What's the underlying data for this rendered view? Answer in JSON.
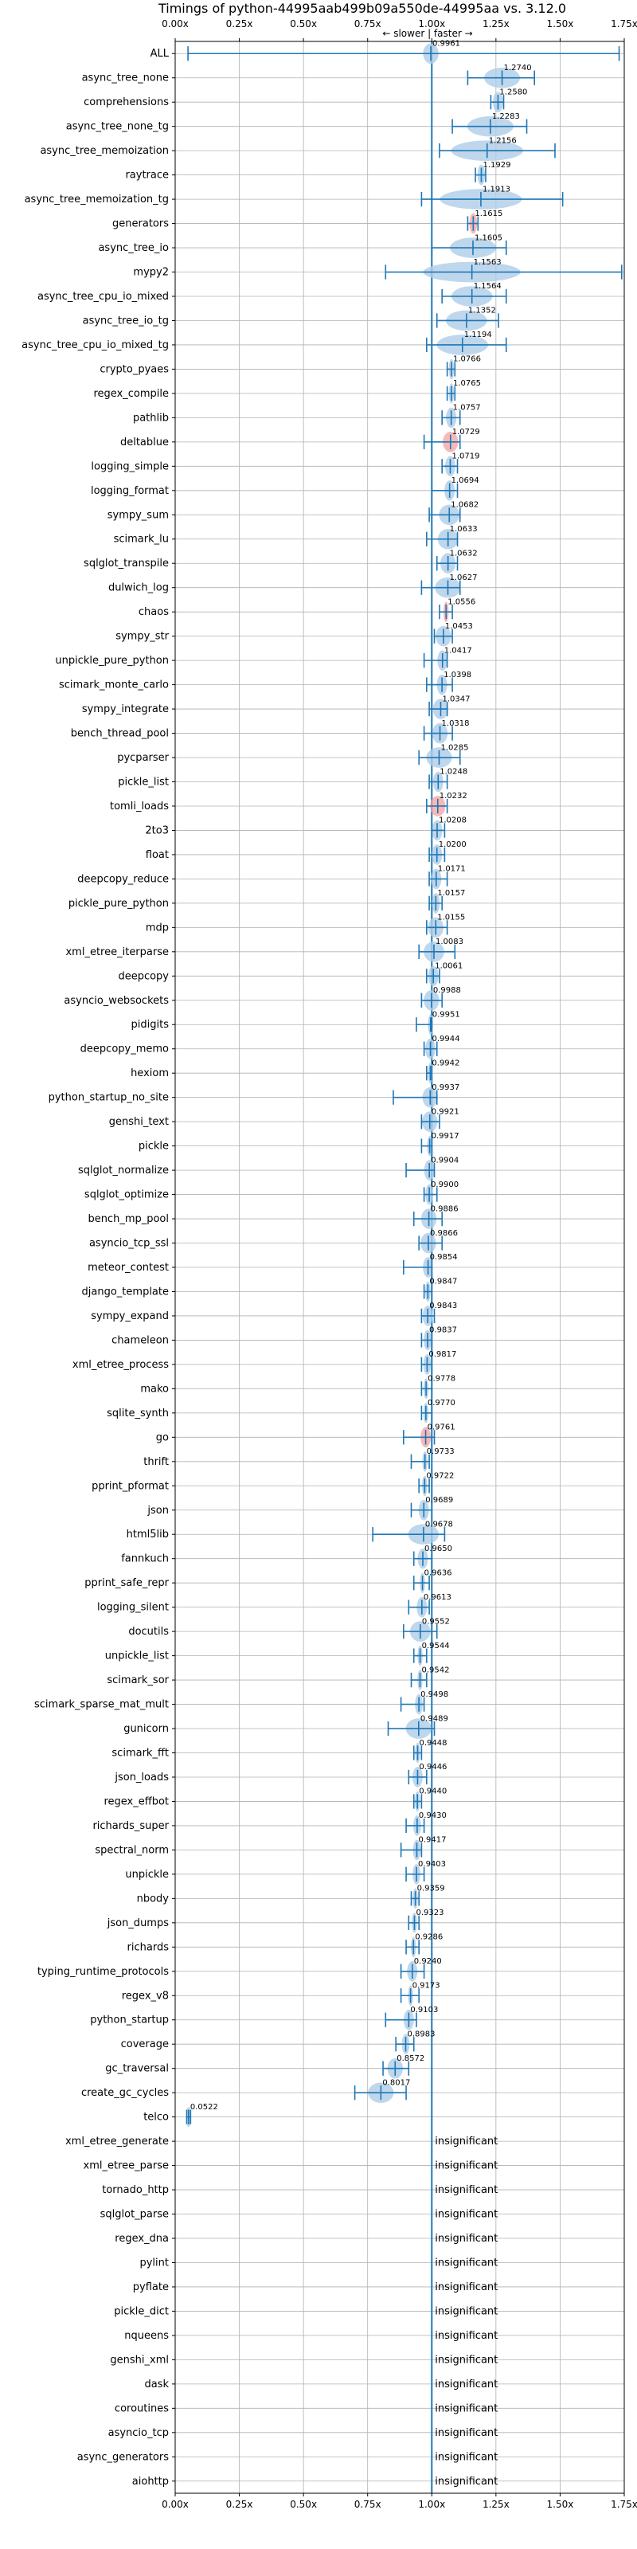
{
  "chart_data": {
    "type": "violin",
    "title": "Timings of python-44995aab499b09a550de-44995aa vs. 3.12.0",
    "subtitle": "← slower | faster →",
    "xlim": [
      0.0,
      1.75
    ],
    "x_ticks": [
      "0.00x",
      "0.25x",
      "0.50x",
      "0.75x",
      "1.00x",
      "1.25x",
      "1.50x",
      "1.75x"
    ],
    "x_tick_values": [
      0.0,
      0.25,
      0.5,
      0.75,
      1.0,
      1.25,
      1.5,
      1.75
    ],
    "reference_line": 1.0,
    "grid": true,
    "colors": {
      "violin": "#aecde8",
      "line": "#1f77b4",
      "highlight": "#f4a0a0",
      "grid": "#b0b0b0"
    },
    "insignificant_label": "insignificant",
    "benchmarks": [
      {
        "name": "ALL",
        "value": 0.9961,
        "label": "0.9961",
        "lo": 0.05,
        "hi": 1.73,
        "spread": 0.03
      },
      {
        "name": "async_tree_none",
        "value": 1.274,
        "label": "1.2740",
        "lo": 1.14,
        "hi": 1.4,
        "spread": 0.07
      },
      {
        "name": "comprehensions",
        "value": 1.258,
        "label": "1.2580",
        "lo": 1.23,
        "hi": 1.28,
        "spread": 0.02
      },
      {
        "name": "async_tree_none_tg",
        "value": 1.2283,
        "label": "1.2283",
        "lo": 1.08,
        "hi": 1.37,
        "spread": 0.09
      },
      {
        "name": "async_tree_memoization",
        "value": 1.2156,
        "label": "1.2156",
        "lo": 1.03,
        "hi": 1.48,
        "spread": 0.14
      },
      {
        "name": "raytrace",
        "value": 1.1929,
        "label": "1.1929",
        "lo": 1.17,
        "hi": 1.21,
        "spread": 0.015
      },
      {
        "name": "async_tree_memoization_tg",
        "value": 1.1913,
        "label": "1.1913",
        "lo": 0.96,
        "hi": 1.51,
        "spread": 0.16
      },
      {
        "name": "generators",
        "value": 1.1615,
        "label": "1.1615",
        "lo": 1.14,
        "hi": 1.18,
        "spread": 0.015,
        "highlight": true
      },
      {
        "name": "async_tree_io",
        "value": 1.1605,
        "label": "1.1605",
        "lo": 1.0,
        "hi": 1.29,
        "spread": 0.09
      },
      {
        "name": "mypy2",
        "value": 1.1563,
        "label": "1.1563",
        "lo": 0.82,
        "hi": 1.74,
        "spread": 0.19
      },
      {
        "name": "async_tree_cpu_io_mixed",
        "value": 1.1564,
        "label": "1.1564",
        "lo": 1.04,
        "hi": 1.29,
        "spread": 0.08
      },
      {
        "name": "async_tree_io_tg",
        "value": 1.1352,
        "label": "1.1352",
        "lo": 1.02,
        "hi": 1.26,
        "spread": 0.08
      },
      {
        "name": "async_tree_cpu_io_mixed_tg",
        "value": 1.1194,
        "label": "1.1194",
        "lo": 0.98,
        "hi": 1.29,
        "spread": 0.1
      },
      {
        "name": "crypto_pyaes",
        "value": 1.0766,
        "label": "1.0766",
        "lo": 1.06,
        "hi": 1.09,
        "spread": 0.01
      },
      {
        "name": "regex_compile",
        "value": 1.0765,
        "label": "1.0765",
        "lo": 1.06,
        "hi": 1.09,
        "spread": 0.01
      },
      {
        "name": "pathlib",
        "value": 1.0757,
        "label": "1.0757",
        "lo": 1.04,
        "hi": 1.11,
        "spread": 0.02
      },
      {
        "name": "deltablue",
        "value": 1.0729,
        "label": "1.0729",
        "lo": 0.97,
        "hi": 1.11,
        "spread": 0.03,
        "highlight": true
      },
      {
        "name": "logging_simple",
        "value": 1.0719,
        "label": "1.0719",
        "lo": 1.04,
        "hi": 1.1,
        "spread": 0.02
      },
      {
        "name": "logging_format",
        "value": 1.0694,
        "label": "1.0694",
        "lo": 1.0,
        "hi": 1.1,
        "spread": 0.02
      },
      {
        "name": "sympy_sum",
        "value": 1.0682,
        "label": "1.0682",
        "lo": 0.99,
        "hi": 1.11,
        "spread": 0.04
      },
      {
        "name": "scimark_lu",
        "value": 1.0633,
        "label": "1.0633",
        "lo": 0.98,
        "hi": 1.1,
        "spread": 0.04
      },
      {
        "name": "sqlglot_transpile",
        "value": 1.0632,
        "label": "1.0632",
        "lo": 1.02,
        "hi": 1.1,
        "spread": 0.03
      },
      {
        "name": "dulwich_log",
        "value": 1.0627,
        "label": "1.0627",
        "lo": 0.96,
        "hi": 1.11,
        "spread": 0.05
      },
      {
        "name": "chaos",
        "value": 1.0556,
        "label": "1.0556",
        "lo": 1.03,
        "hi": 1.08,
        "spread": 0.01,
        "highlight": true
      },
      {
        "name": "sympy_str",
        "value": 1.0453,
        "label": "1.0453",
        "lo": 1.01,
        "hi": 1.08,
        "spread": 0.03
      },
      {
        "name": "unpickle_pure_python",
        "value": 1.0417,
        "label": "1.0417",
        "lo": 0.97,
        "hi": 1.06,
        "spread": 0.02
      },
      {
        "name": "scimark_monte_carlo",
        "value": 1.0398,
        "label": "1.0398",
        "lo": 0.98,
        "hi": 1.08,
        "spread": 0.02
      },
      {
        "name": "sympy_integrate",
        "value": 1.0347,
        "label": "1.0347",
        "lo": 0.99,
        "hi": 1.06,
        "spread": 0.03
      },
      {
        "name": "bench_thread_pool",
        "value": 1.0318,
        "label": "1.0318",
        "lo": 0.97,
        "hi": 1.08,
        "spread": 0.03
      },
      {
        "name": "pycparser",
        "value": 1.0285,
        "label": "1.0285",
        "lo": 0.95,
        "hi": 1.11,
        "spread": 0.05
      },
      {
        "name": "pickle_list",
        "value": 1.0248,
        "label": "1.0248",
        "lo": 0.99,
        "hi": 1.06,
        "spread": 0.02
      },
      {
        "name": "tomli_loads",
        "value": 1.0232,
        "label": "1.0232",
        "lo": 0.98,
        "hi": 1.06,
        "spread": 0.03,
        "highlight": true
      },
      {
        "name": "2to3",
        "value": 1.0208,
        "label": "1.0208",
        "lo": 1.0,
        "hi": 1.05,
        "spread": 0.02
      },
      {
        "name": "float",
        "value": 1.02,
        "label": "1.0200",
        "lo": 0.99,
        "hi": 1.05,
        "spread": 0.02
      },
      {
        "name": "deepcopy_reduce",
        "value": 1.0171,
        "label": "1.0171",
        "lo": 0.99,
        "hi": 1.06,
        "spread": 0.02
      },
      {
        "name": "pickle_pure_python",
        "value": 1.0157,
        "label": "1.0157",
        "lo": 0.99,
        "hi": 1.04,
        "spread": 0.015
      },
      {
        "name": "mdp",
        "value": 1.0155,
        "label": "1.0155",
        "lo": 0.98,
        "hi": 1.06,
        "spread": 0.03
      },
      {
        "name": "xml_etree_iterparse",
        "value": 1.0083,
        "label": "1.0083",
        "lo": 0.95,
        "hi": 1.09,
        "spread": 0.04
      },
      {
        "name": "deepcopy",
        "value": 1.0061,
        "label": "1.0061",
        "lo": 0.98,
        "hi": 1.03,
        "spread": 0.02
      },
      {
        "name": "asyncio_websockets",
        "value": 0.9988,
        "label": "0.9988",
        "lo": 0.96,
        "hi": 1.04,
        "spread": 0.03
      },
      {
        "name": "pidigits",
        "value": 0.9951,
        "label": "0.9951",
        "lo": 0.94,
        "hi": 1.0,
        "spread": 0.01
      },
      {
        "name": "deepcopy_memo",
        "value": 0.9944,
        "label": "0.9944",
        "lo": 0.97,
        "hi": 1.02,
        "spread": 0.02
      },
      {
        "name": "hexiom",
        "value": 0.9942,
        "label": "0.9942",
        "lo": 0.98,
        "hi": 1.0,
        "spread": 0.01
      },
      {
        "name": "python_startup_no_site",
        "value": 0.9937,
        "label": "0.9937",
        "lo": 0.85,
        "hi": 1.02,
        "spread": 0.03
      },
      {
        "name": "genshi_text",
        "value": 0.9921,
        "label": "0.9921",
        "lo": 0.96,
        "hi": 1.03,
        "spread": 0.03
      },
      {
        "name": "pickle",
        "value": 0.9917,
        "label": "0.9917",
        "lo": 0.96,
        "hi": 1.0,
        "spread": 0.01
      },
      {
        "name": "sqlglot_normalize",
        "value": 0.9904,
        "label": "0.9904",
        "lo": 0.9,
        "hi": 1.01,
        "spread": 0.02
      },
      {
        "name": "sqlglot_optimize",
        "value": 0.99,
        "label": "0.9900",
        "lo": 0.97,
        "hi": 1.02,
        "spread": 0.015
      },
      {
        "name": "bench_mp_pool",
        "value": 0.9886,
        "label": "0.9886",
        "lo": 0.93,
        "hi": 1.04,
        "spread": 0.03
      },
      {
        "name": "asyncio_tcp_ssl",
        "value": 0.9866,
        "label": "0.9866",
        "lo": 0.95,
        "hi": 1.04,
        "spread": 0.03
      },
      {
        "name": "meteor_contest",
        "value": 0.9854,
        "label": "0.9854",
        "lo": 0.89,
        "hi": 1.0,
        "spread": 0.02
      },
      {
        "name": "django_template",
        "value": 0.9847,
        "label": "0.9847",
        "lo": 0.97,
        "hi": 1.0,
        "spread": 0.01
      },
      {
        "name": "sympy_expand",
        "value": 0.9843,
        "label": "0.9843",
        "lo": 0.96,
        "hi": 1.01,
        "spread": 0.02
      },
      {
        "name": "chameleon",
        "value": 0.9837,
        "label": "0.9837",
        "lo": 0.96,
        "hi": 1.0,
        "spread": 0.015
      },
      {
        "name": "xml_etree_process",
        "value": 0.9817,
        "label": "0.9817",
        "lo": 0.96,
        "hi": 1.0,
        "spread": 0.015
      },
      {
        "name": "mako",
        "value": 0.9778,
        "label": "0.9778",
        "lo": 0.96,
        "hi": 1.0,
        "spread": 0.01
      },
      {
        "name": "sqlite_synth",
        "value": 0.977,
        "label": "0.9770",
        "lo": 0.96,
        "hi": 1.0,
        "spread": 0.01
      },
      {
        "name": "go",
        "value": 0.9761,
        "label": "0.9761",
        "lo": 0.89,
        "hi": 1.01,
        "spread": 0.02,
        "highlight": true
      },
      {
        "name": "thrift",
        "value": 0.9733,
        "label": "0.9733",
        "lo": 0.92,
        "hi": 0.99,
        "spread": 0.01
      },
      {
        "name": "pprint_pformat",
        "value": 0.9722,
        "label": "0.9722",
        "lo": 0.95,
        "hi": 0.99,
        "spread": 0.01
      },
      {
        "name": "json",
        "value": 0.9689,
        "label": "0.9689",
        "lo": 0.92,
        "hi": 1.0,
        "spread": 0.02
      },
      {
        "name": "html5lib",
        "value": 0.9678,
        "label": "0.9678",
        "lo": 0.77,
        "hi": 1.05,
        "spread": 0.06
      },
      {
        "name": "fannkuch",
        "value": 0.965,
        "label": "0.9650",
        "lo": 0.93,
        "hi": 1.0,
        "spread": 0.02
      },
      {
        "name": "pprint_safe_repr",
        "value": 0.9636,
        "label": "0.9636",
        "lo": 0.93,
        "hi": 0.99,
        "spread": 0.01
      },
      {
        "name": "logging_silent",
        "value": 0.9613,
        "label": "0.9613",
        "lo": 0.91,
        "hi": 0.99,
        "spread": 0.02
      },
      {
        "name": "docutils",
        "value": 0.9552,
        "label": "0.9552",
        "lo": 0.89,
        "hi": 1.02,
        "spread": 0.04
      },
      {
        "name": "unpickle_list",
        "value": 0.9544,
        "label": "0.9544",
        "lo": 0.93,
        "hi": 0.98,
        "spread": 0.01
      },
      {
        "name": "scimark_sor",
        "value": 0.9542,
        "label": "0.9542",
        "lo": 0.92,
        "hi": 0.98,
        "spread": 0.01
      },
      {
        "name": "scimark_sparse_mat_mult",
        "value": 0.9498,
        "label": "0.9498",
        "lo": 0.88,
        "hi": 0.97,
        "spread": 0.015
      },
      {
        "name": "gunicorn",
        "value": 0.9489,
        "label": "0.9489",
        "lo": 0.83,
        "hi": 1.01,
        "spread": 0.05
      },
      {
        "name": "scimark_fft",
        "value": 0.9448,
        "label": "0.9448",
        "lo": 0.93,
        "hi": 0.96,
        "spread": 0.01
      },
      {
        "name": "json_loads",
        "value": 0.9446,
        "label": "0.9446",
        "lo": 0.91,
        "hi": 0.98,
        "spread": 0.02
      },
      {
        "name": "regex_effbot",
        "value": 0.944,
        "label": "0.9440",
        "lo": 0.93,
        "hi": 0.96,
        "spread": 0.01
      },
      {
        "name": "richards_super",
        "value": 0.943,
        "label": "0.9430",
        "lo": 0.9,
        "hi": 0.97,
        "spread": 0.015
      },
      {
        "name": "spectral_norm",
        "value": 0.9417,
        "label": "0.9417",
        "lo": 0.88,
        "hi": 0.96,
        "spread": 0.015
      },
      {
        "name": "unpickle",
        "value": 0.9403,
        "label": "0.9403",
        "lo": 0.9,
        "hi": 0.97,
        "spread": 0.015
      },
      {
        "name": "nbody",
        "value": 0.9359,
        "label": "0.9359",
        "lo": 0.92,
        "hi": 0.95,
        "spread": 0.01
      },
      {
        "name": "json_dumps",
        "value": 0.9323,
        "label": "0.9323",
        "lo": 0.91,
        "hi": 0.95,
        "spread": 0.01
      },
      {
        "name": "richards",
        "value": 0.9286,
        "label": "0.9286",
        "lo": 0.9,
        "hi": 0.95,
        "spread": 0.01
      },
      {
        "name": "typing_runtime_protocols",
        "value": 0.924,
        "label": "0.9240",
        "lo": 0.88,
        "hi": 0.97,
        "spread": 0.02
      },
      {
        "name": "regex_v8",
        "value": 0.9173,
        "label": "0.9173",
        "lo": 0.88,
        "hi": 0.95,
        "spread": 0.01
      },
      {
        "name": "python_startup",
        "value": 0.9103,
        "label": "0.9103",
        "lo": 0.82,
        "hi": 0.94,
        "spread": 0.02
      },
      {
        "name": "coverage",
        "value": 0.8983,
        "label": "0.8983",
        "lo": 0.86,
        "hi": 0.93,
        "spread": 0.015
      },
      {
        "name": "gc_traversal",
        "value": 0.8572,
        "label": "0.8572",
        "lo": 0.81,
        "hi": 0.91,
        "spread": 0.03
      },
      {
        "name": "create_gc_cycles",
        "value": 0.8017,
        "label": "0.8017",
        "lo": 0.7,
        "hi": 0.9,
        "spread": 0.05
      },
      {
        "name": "telco",
        "value": 0.0522,
        "label": "0.0522",
        "lo": 0.045,
        "hi": 0.06,
        "spread": 0.005
      },
      {
        "name": "xml_etree_generate",
        "insignificant": true
      },
      {
        "name": "xml_etree_parse",
        "insignificant": true
      },
      {
        "name": "tornado_http",
        "insignificant": true
      },
      {
        "name": "sqlglot_parse",
        "insignificant": true
      },
      {
        "name": "regex_dna",
        "insignificant": true
      },
      {
        "name": "pylint",
        "insignificant": true
      },
      {
        "name": "pyflate",
        "insignificant": true
      },
      {
        "name": "pickle_dict",
        "insignificant": true
      },
      {
        "name": "nqueens",
        "insignificant": true
      },
      {
        "name": "genshi_xml",
        "insignificant": true
      },
      {
        "name": "dask",
        "insignificant": true
      },
      {
        "name": "coroutines",
        "insignificant": true
      },
      {
        "name": "asyncio_tcp",
        "insignificant": true
      },
      {
        "name": "async_generators",
        "insignificant": true
      },
      {
        "name": "aiohttp",
        "insignificant": true
      }
    ]
  }
}
